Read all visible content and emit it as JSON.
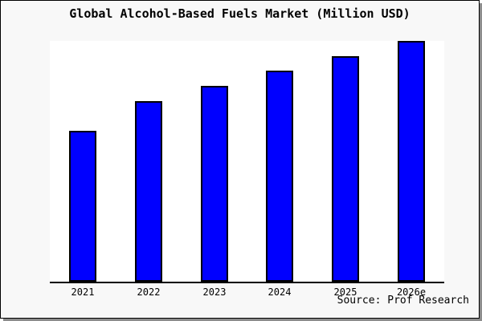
{
  "window": {
    "background": "#f8f8f8",
    "border_color": "#000000",
    "shadow_color": "#8c8c8c"
  },
  "chart_data": {
    "type": "bar",
    "title": "Global Alcohol-Based Fuels Market (Million USD)",
    "categories": [
      "2021",
      "2022",
      "2023",
      "2024",
      "2025",
      "2026e"
    ],
    "values": [
      62.7,
      75.0,
      81.3,
      87.7,
      93.7,
      100.0
    ],
    "value_scale_note": "no y-axis ticks shown; values normalized so 2026e = 100",
    "xlabel": "",
    "ylabel": "",
    "ylim": [
      0,
      100
    ],
    "grid": false,
    "legend": false,
    "bar_color": "#0000ff",
    "bar_border_color": "#000000",
    "plot_background": "#ffffff",
    "axis_line_color": "#000000",
    "source_note": "Source: Prof Research"
  }
}
